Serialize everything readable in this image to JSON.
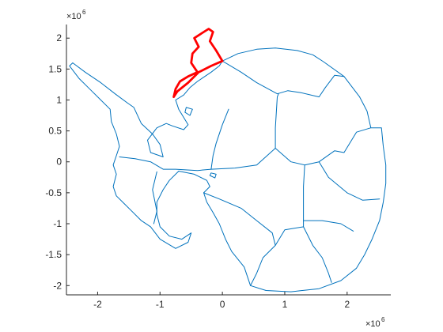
{
  "chart_data": {
    "type": "map",
    "title": "",
    "xlabel": "",
    "ylabel": "",
    "xlim": [
      -2.5,
      2.7
    ],
    "ylim": [
      -2.15,
      2.22
    ],
    "axis_scale_multiplier": {
      "base": "×10",
      "exponent": "6"
    },
    "x_ticks": [
      -2,
      -1,
      0,
      1,
      2
    ],
    "x_tick_labels": [
      "-2",
      "-1",
      "0",
      "1",
      "2"
    ],
    "y_ticks": [
      -2,
      -1.5,
      -1,
      -0.5,
      0,
      0.5,
      1,
      1.5,
      2
    ],
    "y_tick_labels": [
      "-2",
      "-1.5",
      "-1",
      "-0.5",
      "0",
      "0.5",
      "1",
      "1.5",
      "2"
    ],
    "grid": false,
    "box": "left-bottom axes only",
    "colors": {
      "outline": "#0072bd",
      "highlight": "#ff0000",
      "axis": "#262626"
    },
    "layers": [
      {
        "name": "coastline",
        "role": "outline",
        "points": [
          [
            0.0,
            1.63
          ],
          [
            0.25,
            1.75
          ],
          [
            0.55,
            1.82
          ],
          [
            0.85,
            1.84
          ],
          [
            1.2,
            1.8
          ],
          [
            1.45,
            1.73
          ],
          [
            1.62,
            1.62
          ],
          [
            1.95,
            1.38
          ],
          [
            2.2,
            1.05
          ],
          [
            2.32,
            0.82
          ],
          [
            2.38,
            0.55
          ],
          [
            2.55,
            0.55
          ],
          [
            2.58,
            0.25
          ],
          [
            2.62,
            -0.05
          ],
          [
            2.62,
            -0.35
          ],
          [
            2.58,
            -0.65
          ],
          [
            2.52,
            -0.95
          ],
          [
            2.4,
            -1.25
          ],
          [
            2.28,
            -1.5
          ],
          [
            2.15,
            -1.72
          ],
          [
            1.9,
            -1.92
          ],
          [
            1.55,
            -2.05
          ],
          [
            1.1,
            -2.1
          ],
          [
            0.7,
            -2.08
          ],
          [
            0.45,
            -2.0
          ],
          [
            0.35,
            -1.7
          ],
          [
            0.15,
            -1.45
          ],
          [
            0.05,
            -1.25
          ],
          [
            -0.05,
            -1.0
          ],
          [
            -0.15,
            -0.82
          ],
          [
            -0.25,
            -0.65
          ],
          [
            -0.3,
            -0.5
          ],
          [
            -0.2,
            -0.4
          ],
          [
            -0.25,
            -0.3
          ],
          [
            -0.45,
            -0.2
          ],
          [
            -0.7,
            -0.15
          ],
          [
            -0.85,
            -0.3
          ],
          [
            -0.95,
            -0.45
          ],
          [
            -1.05,
            -0.65
          ],
          [
            -1.05,
            -0.85
          ],
          [
            -1.0,
            -1.05
          ],
          [
            -0.85,
            -1.2
          ],
          [
            -0.65,
            -1.25
          ],
          [
            -0.5,
            -1.15
          ],
          [
            -0.55,
            -1.3
          ],
          [
            -0.75,
            -1.4
          ],
          [
            -1.0,
            -1.25
          ],
          [
            -1.15,
            -1.05
          ],
          [
            -1.3,
            -0.95
          ],
          [
            -1.45,
            -0.8
          ],
          [
            -1.6,
            -0.65
          ],
          [
            -1.7,
            -0.55
          ],
          [
            -1.75,
            -0.4
          ],
          [
            -1.7,
            -0.2
          ],
          [
            -1.75,
            -0.05
          ],
          [
            -1.7,
            0.1
          ],
          [
            -1.65,
            0.25
          ],
          [
            -1.7,
            0.45
          ],
          [
            -1.78,
            0.65
          ],
          [
            -1.8,
            0.85
          ],
          [
            -1.95,
            1.0
          ],
          [
            -2.1,
            1.15
          ],
          [
            -2.3,
            1.35
          ],
          [
            -2.45,
            1.55
          ],
          [
            -2.4,
            1.6
          ],
          [
            -2.2,
            1.45
          ],
          [
            -1.95,
            1.28
          ],
          [
            -1.72,
            1.1
          ],
          [
            -1.52,
            0.95
          ],
          [
            -1.42,
            0.88
          ],
          [
            -1.3,
            0.62
          ],
          [
            -1.12,
            0.45
          ],
          [
            -1.0,
            0.28
          ],
          [
            -0.95,
            0.08
          ],
          [
            -1.15,
            0.15
          ],
          [
            -1.2,
            0.35
          ],
          [
            -1.05,
            0.55
          ],
          [
            -0.9,
            0.62
          ],
          [
            -0.8,
            0.58
          ],
          [
            -0.62,
            0.52
          ],
          [
            -0.55,
            0.6
          ],
          [
            -0.7,
            0.85
          ],
          [
            -0.75,
            1.0
          ],
          [
            -0.62,
            1.08
          ],
          [
            -0.52,
            1.2
          ],
          [
            -0.4,
            1.3
          ],
          [
            -0.18,
            1.45
          ],
          [
            -0.05,
            1.55
          ],
          [
            0.0,
            1.63
          ]
        ]
      },
      {
        "name": "divide-peninsula-west",
        "role": "outline",
        "points": [
          [
            -1.65,
            0.08
          ],
          [
            -1.4,
            0.05
          ],
          [
            -1.15,
            0.0
          ],
          [
            -0.95,
            -0.12
          ],
          [
            -0.75,
            -0.12
          ],
          [
            -0.4,
            -0.14
          ],
          [
            -0.18,
            -0.12
          ]
        ]
      },
      {
        "name": "divide-peninsula-south",
        "role": "outline",
        "points": [
          [
            -1.05,
            -0.16
          ],
          [
            -1.12,
            -0.45
          ],
          [
            -1.05,
            -0.8
          ],
          [
            -1.1,
            -1.0
          ]
        ]
      },
      {
        "name": "divide-central-west",
        "role": "outline",
        "points": [
          [
            -0.18,
            -0.12
          ],
          [
            -0.15,
            0.1
          ],
          [
            -0.1,
            0.3
          ],
          [
            0.0,
            0.6
          ],
          [
            0.1,
            0.85
          ]
        ]
      },
      {
        "name": "divide-west-dome",
        "role": "outline",
        "points": [
          [
            -0.18,
            -0.12
          ],
          [
            0.2,
            -0.1
          ],
          [
            0.55,
            -0.05
          ],
          [
            0.85,
            0.22
          ]
        ]
      },
      {
        "name": "divide-dome-north",
        "role": "outline",
        "points": [
          [
            0.85,
            0.22
          ],
          [
            0.85,
            0.55
          ],
          [
            0.88,
            1.05
          ],
          [
            0.9,
            1.1
          ]
        ]
      },
      {
        "name": "divide-north-line",
        "role": "outline",
        "points": [
          [
            0.0,
            1.63
          ],
          [
            0.3,
            1.45
          ],
          [
            0.55,
            1.28
          ],
          [
            0.88,
            1.1
          ],
          [
            1.05,
            1.15
          ],
          [
            1.25,
            1.12
          ],
          [
            1.55,
            1.05
          ],
          [
            1.65,
            1.2
          ],
          [
            1.8,
            1.4
          ],
          [
            1.95,
            1.38
          ]
        ]
      },
      {
        "name": "divide-dome-east",
        "role": "outline",
        "points": [
          [
            0.85,
            0.22
          ],
          [
            1.1,
            0.0
          ],
          [
            1.32,
            -0.05
          ],
          [
            1.55,
            0.0
          ],
          [
            1.8,
            0.18
          ],
          [
            1.95,
            0.15
          ],
          [
            2.15,
            0.48
          ],
          [
            2.38,
            0.55
          ]
        ]
      },
      {
        "name": "divide-east-south",
        "role": "outline",
        "points": [
          [
            1.55,
            0.0
          ],
          [
            1.7,
            -0.25
          ],
          [
            2.0,
            -0.5
          ],
          [
            2.25,
            -0.62
          ],
          [
            2.52,
            -0.6
          ]
        ]
      },
      {
        "name": "divide-south-main",
        "role": "outline",
        "points": [
          [
            1.32,
            -0.05
          ],
          [
            1.3,
            -0.4
          ],
          [
            1.3,
            -0.75
          ],
          [
            1.3,
            -1.05
          ],
          [
            1.45,
            -1.35
          ],
          [
            1.6,
            -1.55
          ],
          [
            1.7,
            -1.8
          ],
          [
            1.75,
            -1.95
          ]
        ]
      },
      {
        "name": "divide-south-west",
        "role": "outline",
        "points": [
          [
            1.3,
            -1.05
          ],
          [
            1.0,
            -1.1
          ],
          [
            0.85,
            -1.35
          ],
          [
            0.65,
            -1.55
          ],
          [
            0.55,
            -1.8
          ],
          [
            0.45,
            -2.0
          ]
        ]
      },
      {
        "name": "divide-south-east",
        "role": "outline",
        "points": [
          [
            1.3,
            -0.95
          ],
          [
            1.6,
            -0.95
          ],
          [
            1.9,
            -1.0
          ],
          [
            2.1,
            -1.12
          ]
        ]
      },
      {
        "name": "divide-ross",
        "role": "outline",
        "points": [
          [
            -0.3,
            -0.5
          ],
          [
            -0.05,
            -0.6
          ],
          [
            0.3,
            -0.75
          ],
          [
            0.55,
            -0.95
          ],
          [
            0.8,
            -1.15
          ],
          [
            0.85,
            -1.35
          ]
        ]
      },
      {
        "name": "island-north",
        "role": "outline",
        "points": [
          [
            -0.6,
            0.8
          ],
          [
            -0.52,
            0.75
          ],
          [
            -0.48,
            0.85
          ],
          [
            -0.58,
            0.88
          ],
          [
            -0.6,
            0.8
          ]
        ]
      },
      {
        "name": "island-east",
        "role": "outline",
        "points": [
          [
            -0.2,
            -0.22
          ],
          [
            -0.12,
            -0.26
          ],
          [
            -0.1,
            -0.2
          ],
          [
            -0.18,
            -0.18
          ],
          [
            -0.2,
            -0.22
          ]
        ]
      },
      {
        "name": "highlighted-basin",
        "role": "highlight",
        "points": [
          [
            -0.78,
            1.05
          ],
          [
            -0.75,
            1.18
          ],
          [
            -0.68,
            1.3
          ],
          [
            -0.55,
            1.38
          ],
          [
            -0.4,
            1.45
          ],
          [
            -0.5,
            1.6
          ],
          [
            -0.48,
            1.75
          ],
          [
            -0.38,
            1.86
          ],
          [
            -0.45,
            2.0
          ],
          [
            -0.33,
            2.08
          ],
          [
            -0.22,
            2.15
          ],
          [
            -0.15,
            2.1
          ],
          [
            -0.2,
            1.95
          ],
          [
            -0.1,
            1.8
          ],
          [
            0.0,
            1.63
          ],
          [
            -0.18,
            1.55
          ],
          [
            -0.38,
            1.45
          ],
          [
            -0.55,
            1.28
          ],
          [
            -0.72,
            1.14
          ],
          [
            -0.78,
            1.05
          ]
        ]
      }
    ]
  }
}
